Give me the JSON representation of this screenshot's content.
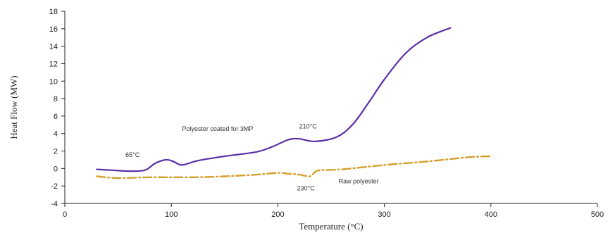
{
  "chart_data": {
    "type": "line",
    "title": "",
    "xlabel": "Temperature (°C)",
    "ylabel": "Heat Flow (MW)",
    "xlim": [
      0,
      500
    ],
    "ylim": [
      -4,
      18
    ],
    "xticks": [
      0,
      100,
      200,
      300,
      400,
      500
    ],
    "yticks": [
      -4,
      -2,
      0,
      2,
      4,
      6,
      8,
      10,
      12,
      14,
      16,
      18
    ],
    "grid": false,
    "legend": "none",
    "series": [
      {
        "name": "Polyester coated for 3MP",
        "color": "#5b2fa6",
        "style": "solid",
        "x": [
          30,
          45,
          60,
          75,
          85,
          95,
          102,
          110,
          125,
          150,
          180,
          195,
          210,
          220,
          235,
          255,
          270,
          285,
          300,
          320,
          340,
          362
        ],
        "y": [
          -0.1,
          -0.2,
          -0.3,
          -0.2,
          0.6,
          1.0,
          0.8,
          0.4,
          0.9,
          1.4,
          1.9,
          2.5,
          3.3,
          3.4,
          3.1,
          3.6,
          5.0,
          7.5,
          10.2,
          13.2,
          15.0,
          16.1
        ]
      },
      {
        "name": "Raw polyester",
        "color": "#d4a02c",
        "style": "dash-dot",
        "x": [
          30,
          50,
          80,
          120,
          150,
          180,
          200,
          210,
          220,
          230,
          235,
          240,
          260,
          300,
          340,
          380,
          400
        ],
        "y": [
          -0.9,
          -1.1,
          -1.0,
          -1.0,
          -0.9,
          -0.7,
          -0.5,
          -0.6,
          -0.7,
          -0.9,
          -0.4,
          -0.2,
          -0.1,
          0.4,
          0.8,
          1.3,
          1.4
        ]
      }
    ],
    "annotations": [
      {
        "text": "65°C",
        "x": 57,
        "y": 1.3
      },
      {
        "text": "Polyester coated for 3MP",
        "x": 110,
        "y": 4.3
      },
      {
        "text": "210°C",
        "x": 220,
        "y": 4.6
      },
      {
        "text": "230°C",
        "x": 218,
        "y": -2.5
      },
      {
        "text": "Raw polyester",
        "x": 257,
        "y": -1.7
      }
    ]
  }
}
